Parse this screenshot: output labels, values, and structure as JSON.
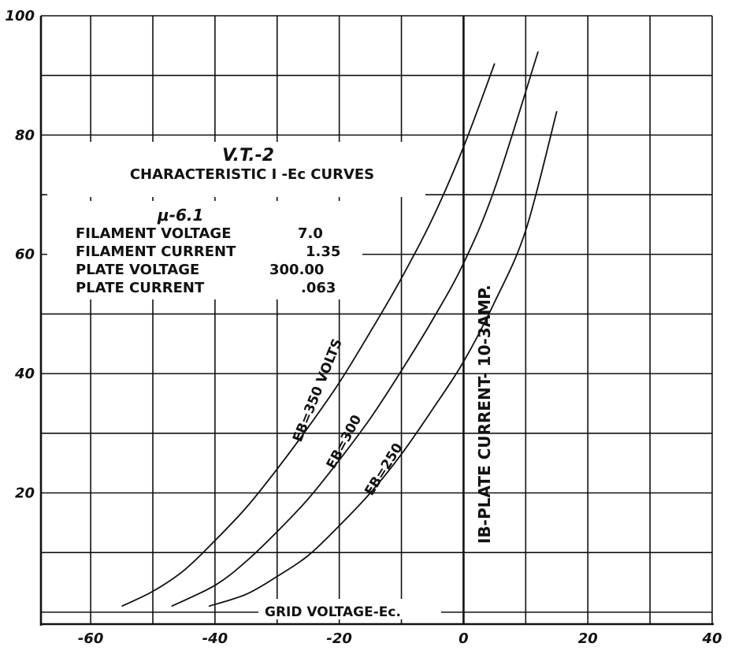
{
  "chart_data": {
    "type": "line",
    "title": "V.T.-2",
    "subtitle": "CHARACTERISTIC I -Ec CURVES",
    "mu_label": "μ-6.1",
    "specs": [
      {
        "label": "FILAMENT VOLTAGE",
        "value": "7.0"
      },
      {
        "label": "FILAMENT CURRENT",
        "value": "1.35"
      },
      {
        "label": "PLATE VOLTAGE",
        "value": "300.00"
      },
      {
        "label": "PLATE CURRENT",
        "value": ".063"
      }
    ],
    "xlabel": "GRID VOLTAGE-Ec.",
    "ylabel": "IB-PLATE CURRENT- 10-3AMP.",
    "xlim": [
      -68,
      40
    ],
    "ylim": [
      -2,
      100
    ],
    "xticks": [
      -60,
      -40,
      -20,
      0,
      20,
      40
    ],
    "xtick_labels": [
      "-60",
      "-40",
      "-20",
      "0",
      "20",
      "40"
    ],
    "yticks": [
      20,
      40,
      60,
      80,
      100
    ],
    "ytick_labels": [
      "20",
      "40",
      "60",
      "80",
      "100"
    ],
    "grid": true,
    "grid_x_step": 10,
    "grid_y_step": 10,
    "series": [
      {
        "name": "EB=350 VOLTS",
        "x": [
          -55,
          -50,
          -45,
          -40,
          -35,
          -30,
          -25,
          -20,
          -15,
          -10,
          -5,
          0,
          5
        ],
        "y": [
          1,
          3.5,
          7,
          12,
          17.5,
          24,
          31,
          38.5,
          47,
          56,
          66,
          78,
          92
        ]
      },
      {
        "name": "EB=300",
        "x": [
          -47,
          -40,
          -35,
          -30,
          -25,
          -20,
          -15,
          -10,
          -5,
          0,
          5,
          12
        ],
        "y": [
          1,
          4.5,
          8.5,
          13.5,
          19,
          25.5,
          32.5,
          40.5,
          49,
          58.5,
          71,
          94
        ]
      },
      {
        "name": "EB=250",
        "x": [
          -41,
          -35,
          -30,
          -25,
          -20,
          -15,
          -10,
          -5,
          0,
          5,
          10,
          15
        ],
        "y": [
          1,
          3,
          6,
          9.5,
          14.5,
          20,
          26.5,
          34,
          42,
          52,
          64,
          84
        ]
      }
    ]
  }
}
